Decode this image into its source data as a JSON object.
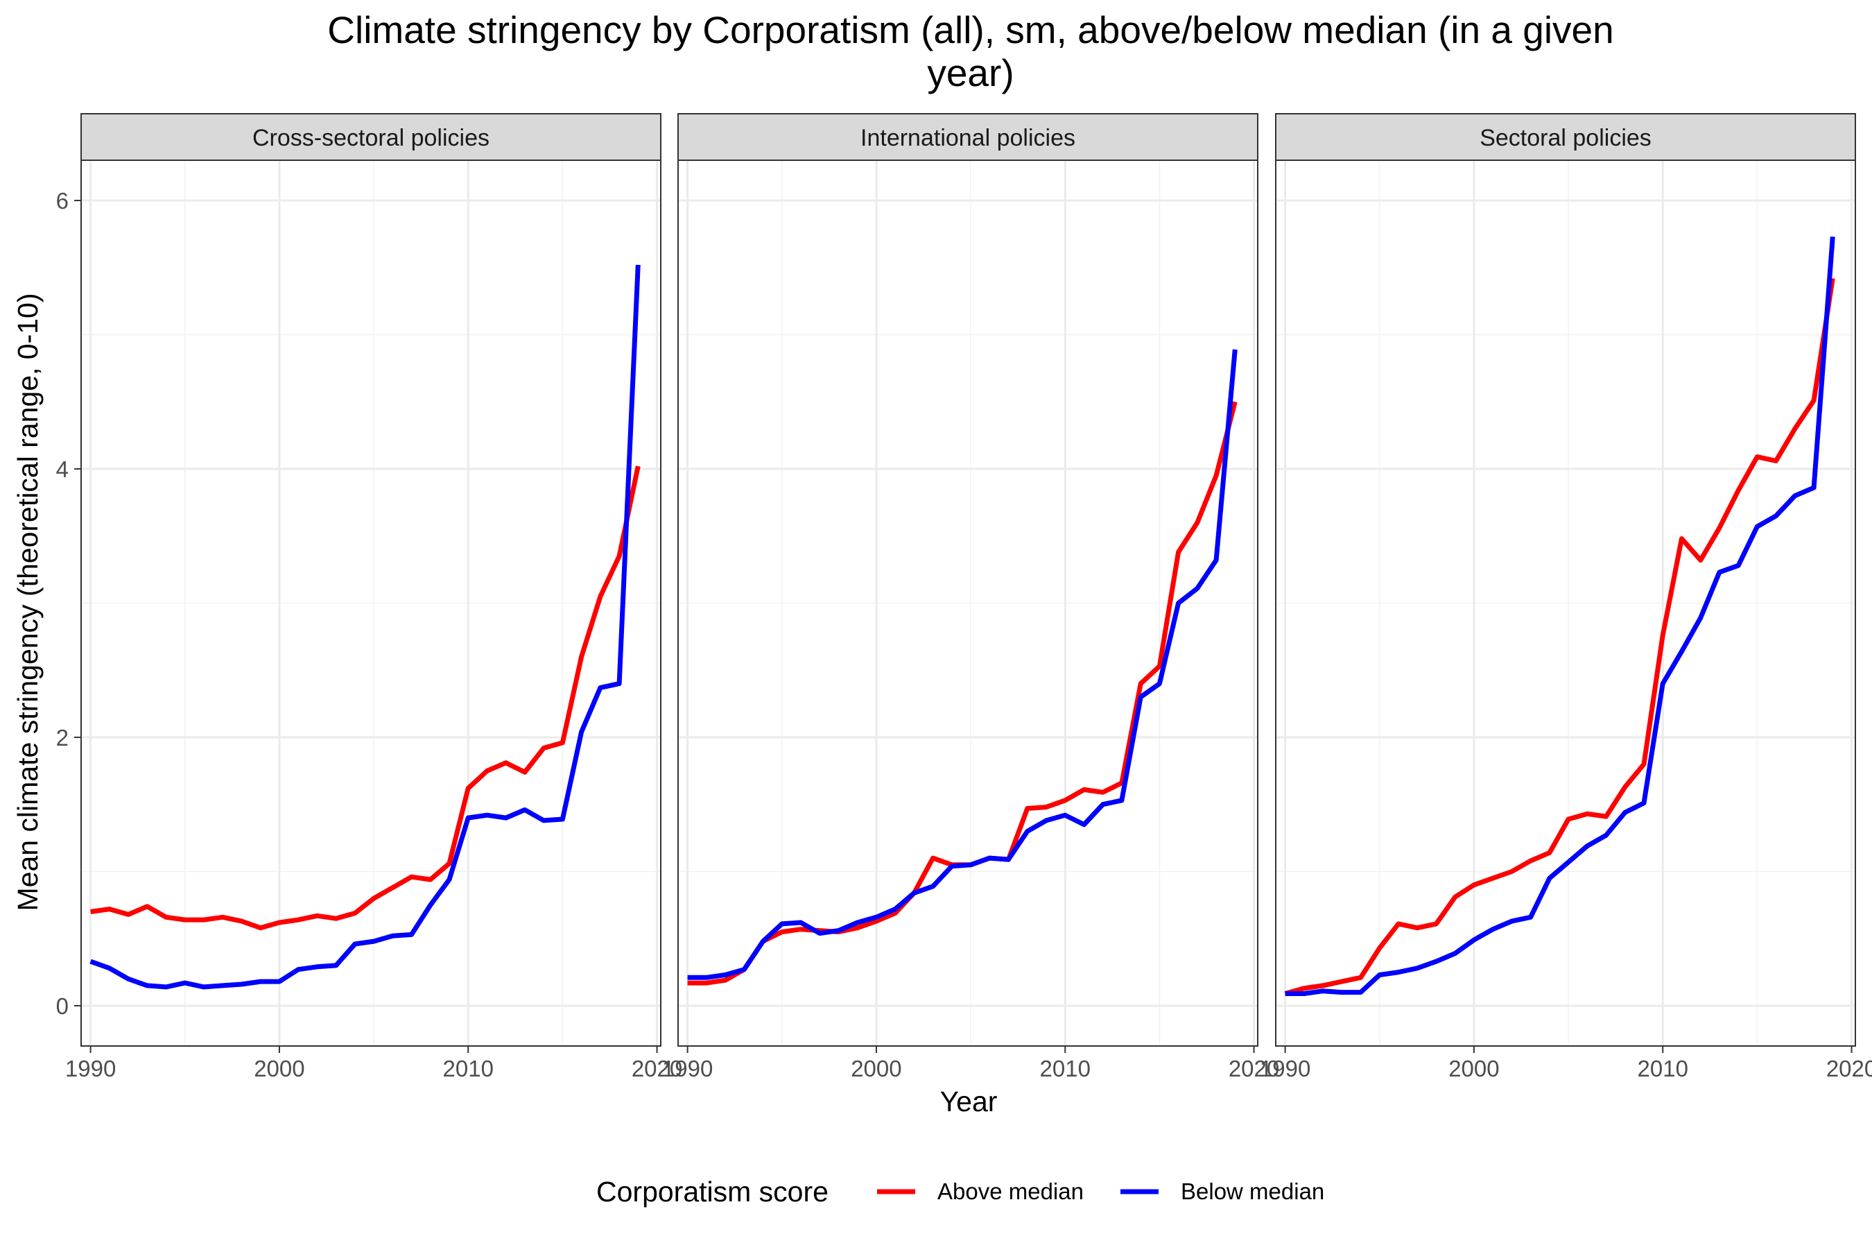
{
  "title_line1": "Climate stringency by Corporatism (all), sm, above/below median (in a given",
  "title_line2": "year)",
  "xlabel": "Year",
  "ylabel": "Mean climate stringency (theoretical range, 0-10)",
  "legend": {
    "title": "Corporatism score",
    "entries": [
      {
        "label": "Above median",
        "color": "#ff0000"
      },
      {
        "label": "Below median",
        "color": "#0000ff"
      }
    ]
  },
  "chart_data": {
    "type": "line",
    "title": "Climate stringency by Corporatism (all), sm, above/below median (in a given year)",
    "xlabel": "Year",
    "ylabel": "Mean climate stringency (theoretical range, 0-10)",
    "xlim": [
      1989.5,
      2020.2
    ],
    "ylim": [
      -0.3,
      6.3
    ],
    "xticks": [
      1990,
      2000,
      2010,
      2020
    ],
    "yticks": [
      0,
      2,
      4,
      6
    ],
    "grid": true,
    "legend_position": "bottom",
    "facets": [
      {
        "strip": "Cross-sectoral policies",
        "x": [
          1990,
          1991,
          1992,
          1993,
          1994,
          1995,
          1996,
          1997,
          1998,
          1999,
          2000,
          2001,
          2002,
          2003,
          2004,
          2005,
          2006,
          2007,
          2008,
          2009,
          2010,
          2011,
          2012,
          2013,
          2014,
          2015,
          2016,
          2017,
          2018,
          2019
        ],
        "series": [
          {
            "name": "Above median",
            "color": "#ff0000",
            "values": [
              0.7,
              0.72,
              0.68,
              0.74,
              0.66,
              0.64,
              0.64,
              0.66,
              0.63,
              0.58,
              0.62,
              0.64,
              0.67,
              0.65,
              0.69,
              0.8,
              0.88,
              0.96,
              0.94,
              1.06,
              1.62,
              1.75,
              1.81,
              1.74,
              1.92,
              1.96,
              2.6,
              3.05,
              3.35,
              4.02
            ]
          },
          {
            "name": "Below median",
            "color": "#0000ff",
            "values": [
              0.33,
              0.28,
              0.2,
              0.15,
              0.14,
              0.17,
              0.14,
              0.15,
              0.16,
              0.18,
              0.18,
              0.27,
              0.29,
              0.3,
              0.46,
              0.48,
              0.52,
              0.53,
              0.75,
              0.94,
              1.4,
              1.42,
              1.4,
              1.46,
              1.38,
              1.39,
              2.04,
              2.37,
              2.4,
              5.52
            ]
          }
        ]
      },
      {
        "strip": "International policies",
        "x": [
          1990,
          1991,
          1992,
          1993,
          1994,
          1995,
          1996,
          1997,
          1998,
          1999,
          2000,
          2001,
          2002,
          2003,
          2004,
          2005,
          2006,
          2007,
          2008,
          2009,
          2010,
          2011,
          2012,
          2013,
          2014,
          2015,
          2016,
          2017,
          2018,
          2019
        ],
        "series": [
          {
            "name": "Above median",
            "color": "#ff0000",
            "values": [
              0.17,
              0.17,
              0.19,
              0.27,
              0.48,
              0.55,
              0.57,
              0.56,
              0.55,
              0.58,
              0.63,
              0.69,
              0.84,
              1.1,
              1.05,
              1.05,
              1.1,
              1.09,
              1.47,
              1.48,
              1.53,
              1.61,
              1.59,
              1.66,
              2.4,
              2.53,
              3.38,
              3.6,
              3.95,
              4.5
            ]
          },
          {
            "name": "Below median",
            "color": "#0000ff",
            "values": [
              0.21,
              0.21,
              0.23,
              0.27,
              0.48,
              0.61,
              0.62,
              0.54,
              0.56,
              0.62,
              0.66,
              0.72,
              0.84,
              0.89,
              1.04,
              1.05,
              1.1,
              1.09,
              1.3,
              1.38,
              1.42,
              1.35,
              1.5,
              1.53,
              2.3,
              2.4,
              3.0,
              3.11,
              3.32,
              4.89
            ]
          }
        ]
      },
      {
        "strip": "Sectoral policies",
        "x": [
          1990,
          1991,
          1992,
          1993,
          1994,
          1995,
          1996,
          1997,
          1998,
          1999,
          2000,
          2001,
          2002,
          2003,
          2004,
          2005,
          2006,
          2007,
          2008,
          2009,
          2010,
          2011,
          2012,
          2013,
          2014,
          2015,
          2016,
          2017,
          2018,
          2019
        ],
        "series": [
          {
            "name": "Above median",
            "color": "#ff0000",
            "values": [
              0.09,
              0.13,
              0.15,
              0.18,
              0.21,
              0.43,
              0.61,
              0.58,
              0.61,
              0.81,
              0.9,
              0.95,
              1.0,
              1.08,
              1.14,
              1.39,
              1.43,
              1.41,
              1.63,
              1.8,
              2.76,
              3.48,
              3.32,
              3.56,
              3.84,
              4.09,
              4.06,
              4.3,
              4.51,
              5.42
            ]
          },
          {
            "name": "Below median",
            "color": "#0000ff",
            "values": [
              0.09,
              0.09,
              0.11,
              0.1,
              0.1,
              0.23,
              0.25,
              0.28,
              0.33,
              0.39,
              0.49,
              0.57,
              0.63,
              0.66,
              0.95,
              1.07,
              1.19,
              1.27,
              1.44,
              1.51,
              2.4,
              2.64,
              2.89,
              3.23,
              3.28,
              3.57,
              3.65,
              3.8,
              3.86,
              5.73
            ]
          }
        ]
      }
    ]
  }
}
